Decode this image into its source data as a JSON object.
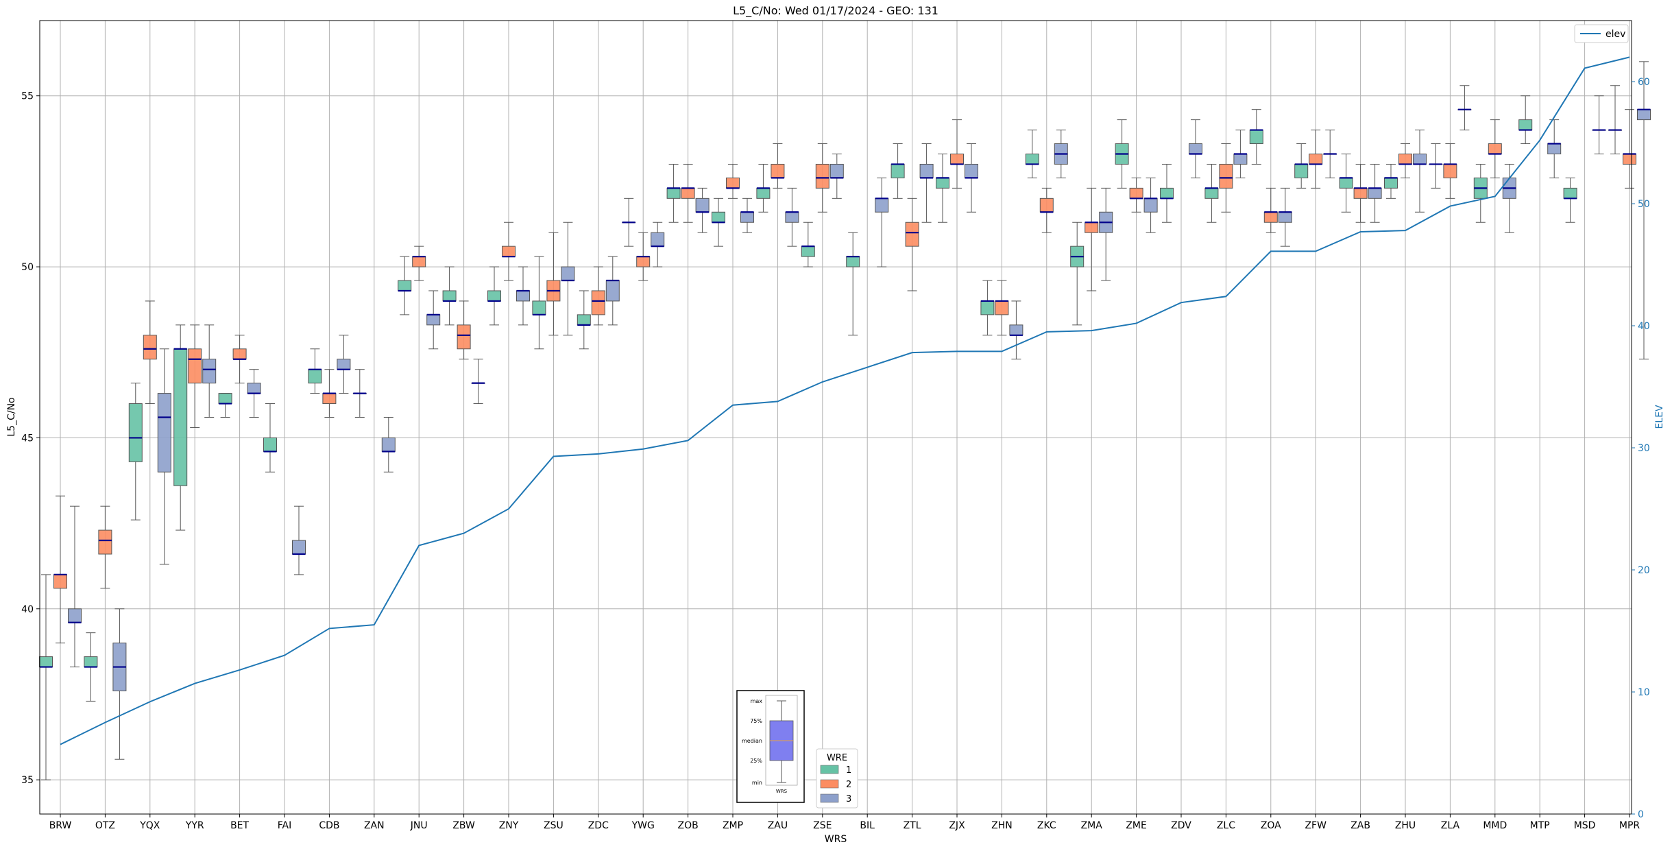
{
  "chart_data": {
    "type": "box",
    "title": "L5_C/No: Wed 01/17/2024 - GEO: 131",
    "xlabel": "WRS",
    "ylabel": "L5_C/No",
    "y2label": "ELEV",
    "ylim": [
      34.0,
      57.2
    ],
    "y2lim": [
      0,
      65
    ],
    "yticks": [
      35,
      40,
      45,
      50,
      55
    ],
    "y2ticks": [
      0,
      10,
      20,
      30,
      40,
      50,
      60
    ],
    "grid": true,
    "categories": [
      "BRW",
      "OTZ",
      "YQX",
      "YYR",
      "BET",
      "FAI",
      "CDB",
      "ZAN",
      "JNU",
      "ZBW",
      "ZNY",
      "ZSU",
      "ZDC",
      "YWG",
      "ZOB",
      "ZMP",
      "ZAU",
      "ZSE",
      "BIL",
      "ZTL",
      "ZJX",
      "ZHN",
      "ZKC",
      "ZMA",
      "ZME",
      "ZDV",
      "ZLC",
      "ZOA",
      "ZFW",
      "ZAB",
      "ZHU",
      "ZLA",
      "MMD",
      "MTP",
      "MSD",
      "MPR"
    ],
    "series": [
      {
        "name": "1",
        "color": "#66c2a5",
        "boxes": [
          {
            "min": 35.0,
            "q1": 38.3,
            "median": 38.3,
            "q3": 38.6,
            "max": 41.0
          },
          {
            "min": 37.3,
            "q1": 38.3,
            "median": 38.3,
            "q3": 38.6,
            "max": 39.3
          },
          {
            "min": 42.6,
            "q1": 44.3,
            "median": 45.0,
            "q3": 46.0,
            "max": 46.6
          },
          {
            "min": 42.3,
            "q1": 43.6,
            "median": 47.6,
            "q3": 47.6,
            "max": 48.3
          },
          {
            "min": 45.6,
            "q1": 46.0,
            "median": 46.0,
            "q3": 46.3,
            "max": 46.3
          },
          {
            "min": 44.0,
            "q1": 44.6,
            "median": 44.6,
            "q3": 45.0,
            "max": 46.0
          },
          {
            "min": 46.3,
            "q1": 46.6,
            "median": 47.0,
            "q3": 47.0,
            "max": 47.6
          },
          {
            "min": 45.6,
            "q1": 46.3,
            "median": 46.3,
            "q3": 46.3,
            "max": 47.0
          },
          {
            "min": 48.6,
            "q1": 49.3,
            "median": 49.3,
            "q3": 49.6,
            "max": 50.3
          },
          {
            "min": 48.3,
            "q1": 49.0,
            "median": 49.0,
            "q3": 49.3,
            "max": 50.0
          },
          {
            "min": 48.3,
            "q1": 49.0,
            "median": 49.0,
            "q3": 49.3,
            "max": 50.0
          },
          {
            "min": 47.6,
            "q1": 48.6,
            "median": 48.6,
            "q3": 49.0,
            "max": 50.3
          },
          {
            "min": 47.6,
            "q1": 48.3,
            "median": 48.3,
            "q3": 48.6,
            "max": 49.3
          },
          {
            "min": 50.6,
            "q1": 51.3,
            "median": 51.3,
            "q3": 51.3,
            "max": 52.0
          },
          {
            "min": 51.3,
            "q1": 52.0,
            "median": 52.3,
            "q3": 52.3,
            "max": 53.0
          },
          {
            "min": 50.6,
            "q1": 51.3,
            "median": 51.3,
            "q3": 51.6,
            "max": 52.0
          },
          {
            "min": 51.6,
            "q1": 52.0,
            "median": 52.3,
            "q3": 52.3,
            "max": 53.0
          },
          {
            "min": 50.0,
            "q1": 50.3,
            "median": 50.6,
            "q3": 50.6,
            "max": 51.3
          },
          {
            "min": 48.0,
            "q1": 50.0,
            "median": 50.3,
            "q3": 50.3,
            "max": 51.0
          },
          {
            "min": 52.0,
            "q1": 52.6,
            "median": 53.0,
            "q3": 53.0,
            "max": 53.6
          },
          {
            "min": 51.3,
            "q1": 52.3,
            "median": 52.6,
            "q3": 52.6,
            "max": 53.3
          },
          {
            "min": 48.0,
            "q1": 48.6,
            "median": 49.0,
            "q3": 49.0,
            "max": 49.6
          },
          {
            "min": 52.6,
            "q1": 53.0,
            "median": 53.0,
            "q3": 53.3,
            "max": 54.0
          },
          {
            "min": 48.3,
            "q1": 50.0,
            "median": 50.3,
            "q3": 50.6,
            "max": 51.3
          },
          {
            "min": 52.3,
            "q1": 53.0,
            "median": 53.3,
            "q3": 53.6,
            "max": 54.3
          },
          {
            "min": 51.3,
            "q1": 52.0,
            "median": 52.0,
            "q3": 52.3,
            "max": 53.0
          },
          {
            "min": 51.3,
            "q1": 52.0,
            "median": 52.3,
            "q3": 52.3,
            "max": 53.0
          },
          {
            "min": 53.0,
            "q1": 53.6,
            "median": 54.0,
            "q3": 54.0,
            "max": 54.6
          },
          {
            "min": 52.3,
            "q1": 52.6,
            "median": 53.0,
            "q3": 53.0,
            "max": 53.6
          },
          {
            "min": 51.6,
            "q1": 52.3,
            "median": 52.6,
            "q3": 52.6,
            "max": 53.3
          },
          {
            "min": 52.0,
            "q1": 52.3,
            "median": 52.6,
            "q3": 52.6,
            "max": 53.0
          },
          {
            "min": 52.3,
            "q1": 53.0,
            "median": 53.0,
            "q3": 53.0,
            "max": 53.6
          },
          {
            "min": 51.3,
            "q1": 52.0,
            "median": 52.3,
            "q3": 52.6,
            "max": 53.0
          },
          {
            "min": 53.6,
            "q1": 54.0,
            "median": 54.0,
            "q3": 54.3,
            "max": 55.0
          },
          {
            "min": 51.3,
            "q1": 52.0,
            "median": 52.0,
            "q3": 52.3,
            "max": 52.6
          },
          {
            "min": 53.3,
            "q1": 54.0,
            "median": 54.0,
            "q3": 54.0,
            "max": 55.3
          }
        ]
      },
      {
        "name": "2",
        "color": "#fc8d62",
        "boxes": [
          {
            "min": 39.0,
            "q1": 40.6,
            "median": 41.0,
            "q3": 41.0,
            "max": 43.3
          },
          {
            "min": 40.6,
            "q1": 41.6,
            "median": 42.0,
            "q3": 42.3,
            "max": 43.0
          },
          {
            "min": 46.0,
            "q1": 47.3,
            "median": 47.6,
            "q3": 48.0,
            "max": 49.0
          },
          {
            "min": 45.3,
            "q1": 46.6,
            "median": 47.3,
            "q3": 47.6,
            "max": 48.3
          },
          {
            "min": 46.6,
            "q1": 47.3,
            "median": 47.3,
            "q3": 47.6,
            "max": 48.0
          },
          {
            "min": null,
            "q1": null,
            "median": null,
            "q3": null,
            "max": null
          },
          {
            "min": 45.6,
            "q1": 46.0,
            "median": 46.3,
            "q3": 46.3,
            "max": 47.0
          },
          {
            "min": null,
            "q1": null,
            "median": null,
            "q3": null,
            "max": null
          },
          {
            "min": 49.6,
            "q1": 50.0,
            "median": 50.3,
            "q3": 50.3,
            "max": 50.6
          },
          {
            "min": 47.3,
            "q1": 47.6,
            "median": 48.0,
            "q3": 48.3,
            "max": 49.0
          },
          {
            "min": 49.6,
            "q1": 50.3,
            "median": 50.3,
            "q3": 50.6,
            "max": 51.3
          },
          {
            "min": 48.0,
            "q1": 49.0,
            "median": 49.3,
            "q3": 49.6,
            "max": 51.0
          },
          {
            "min": 48.3,
            "q1": 48.6,
            "median": 49.0,
            "q3": 49.3,
            "max": 50.0
          },
          {
            "min": 49.6,
            "q1": 50.0,
            "median": 50.3,
            "q3": 50.3,
            "max": 51.0
          },
          {
            "min": 51.3,
            "q1": 52.0,
            "median": 52.3,
            "q3": 52.3,
            "max": 53.0
          },
          {
            "min": 52.0,
            "q1": 52.3,
            "median": 52.3,
            "q3": 52.6,
            "max": 53.0
          },
          {
            "min": 52.3,
            "q1": 52.6,
            "median": 52.6,
            "q3": 53.0,
            "max": 53.6
          },
          {
            "min": 51.6,
            "q1": 52.3,
            "median": 52.6,
            "q3": 53.0,
            "max": 53.6
          },
          {
            "min": null,
            "q1": null,
            "median": null,
            "q3": null,
            "max": null
          },
          {
            "min": 49.3,
            "q1": 50.6,
            "median": 51.0,
            "q3": 51.3,
            "max": 52.0
          },
          {
            "min": 52.3,
            "q1": 53.0,
            "median": 53.0,
            "q3": 53.3,
            "max": 54.3
          },
          {
            "min": 48.0,
            "q1": 48.6,
            "median": 49.0,
            "q3": 49.0,
            "max": 49.6
          },
          {
            "min": 51.0,
            "q1": 51.6,
            "median": 51.6,
            "q3": 52.0,
            "max": 52.3
          },
          {
            "min": 49.3,
            "q1": 51.0,
            "median": 51.3,
            "q3": 51.3,
            "max": 52.3
          },
          {
            "min": 51.6,
            "q1": 52.0,
            "median": 52.0,
            "q3": 52.3,
            "max": 52.6
          },
          {
            "min": null,
            "q1": null,
            "median": null,
            "q3": null,
            "max": null
          },
          {
            "min": 51.6,
            "q1": 52.3,
            "median": 52.6,
            "q3": 53.0,
            "max": 53.6
          },
          {
            "min": 51.0,
            "q1": 51.3,
            "median": 51.6,
            "q3": 51.6,
            "max": 52.3
          },
          {
            "min": 52.3,
            "q1": 53.0,
            "median": 53.0,
            "q3": 53.3,
            "max": 54.0
          },
          {
            "min": 51.3,
            "q1": 52.0,
            "median": 52.3,
            "q3": 52.3,
            "max": 53.0
          },
          {
            "min": 52.6,
            "q1": 53.0,
            "median": 53.0,
            "q3": 53.3,
            "max": 53.6
          },
          {
            "min": 52.0,
            "q1": 52.6,
            "median": 53.0,
            "q3": 53.0,
            "max": 53.6
          },
          {
            "min": 52.6,
            "q1": 53.3,
            "median": 53.3,
            "q3": 53.6,
            "max": 54.3
          },
          {
            "min": null,
            "q1": null,
            "median": null,
            "q3": null,
            "max": null
          },
          {
            "min": null,
            "q1": null,
            "median": null,
            "q3": null,
            "max": null
          },
          {
            "min": 52.3,
            "q1": 53.0,
            "median": 53.3,
            "q3": 53.3,
            "max": 54.6
          }
        ]
      },
      {
        "name": "3",
        "color": "#8da0cb",
        "boxes": [
          {
            "min": 38.3,
            "q1": 39.6,
            "median": 39.6,
            "q3": 40.0,
            "max": 43.0
          },
          {
            "min": 35.6,
            "q1": 37.6,
            "median": 38.3,
            "q3": 39.0,
            "max": 40.0
          },
          {
            "min": 41.3,
            "q1": 44.0,
            "median": 45.6,
            "q3": 46.3,
            "max": 47.6
          },
          {
            "min": 45.6,
            "q1": 46.6,
            "median": 47.0,
            "q3": 47.3,
            "max": 48.3
          },
          {
            "min": 45.6,
            "q1": 46.3,
            "median": 46.3,
            "q3": 46.6,
            "max": 47.0
          },
          {
            "min": 41.0,
            "q1": 41.6,
            "median": 41.6,
            "q3": 42.0,
            "max": 43.0
          },
          {
            "min": 46.3,
            "q1": 47.0,
            "median": 47.0,
            "q3": 47.3,
            "max": 48.0
          },
          {
            "min": 44.0,
            "q1": 44.6,
            "median": 44.6,
            "q3": 45.0,
            "max": 45.6
          },
          {
            "min": 47.6,
            "q1": 48.3,
            "median": 48.6,
            "q3": 48.6,
            "max": 49.3
          },
          {
            "min": 46.0,
            "q1": 46.6,
            "median": 46.6,
            "q3": 46.6,
            "max": 47.3
          },
          {
            "min": 48.3,
            "q1": 49.0,
            "median": 49.3,
            "q3": 49.3,
            "max": 50.0
          },
          {
            "min": 48.0,
            "q1": 49.6,
            "median": 49.6,
            "q3": 50.0,
            "max": 51.3
          },
          {
            "min": 48.3,
            "q1": 49.0,
            "median": 49.6,
            "q3": 49.6,
            "max": 50.3
          },
          {
            "min": 50.0,
            "q1": 50.6,
            "median": 50.6,
            "q3": 51.0,
            "max": 51.3
          },
          {
            "min": 51.0,
            "q1": 51.6,
            "median": 51.6,
            "q3": 52.0,
            "max": 52.3
          },
          {
            "min": 51.0,
            "q1": 51.3,
            "median": 51.6,
            "q3": 51.6,
            "max": 52.0
          },
          {
            "min": 50.6,
            "q1": 51.3,
            "median": 51.6,
            "q3": 51.6,
            "max": 52.3
          },
          {
            "min": 52.0,
            "q1": 52.6,
            "median": 52.6,
            "q3": 53.0,
            "max": 53.3
          },
          {
            "min": 50.0,
            "q1": 51.6,
            "median": 52.0,
            "q3": 52.0,
            "max": 52.6
          },
          {
            "min": 51.3,
            "q1": 52.6,
            "median": 52.6,
            "q3": 53.0,
            "max": 53.6
          },
          {
            "min": 51.6,
            "q1": 52.6,
            "median": 52.6,
            "q3": 53.0,
            "max": 53.6
          },
          {
            "min": 47.3,
            "q1": 48.0,
            "median": 48.0,
            "q3": 48.3,
            "max": 49.0
          },
          {
            "min": 52.6,
            "q1": 53.0,
            "median": 53.3,
            "q3": 53.6,
            "max": 54.0
          },
          {
            "min": 49.6,
            "q1": 51.0,
            "median": 51.3,
            "q3": 51.6,
            "max": 52.3
          },
          {
            "min": 51.0,
            "q1": 51.6,
            "median": 52.0,
            "q3": 52.0,
            "max": 52.6
          },
          {
            "min": 52.6,
            "q1": 53.3,
            "median": 53.3,
            "q3": 53.6,
            "max": 54.3
          },
          {
            "min": 52.6,
            "q1": 53.0,
            "median": 53.3,
            "q3": 53.3,
            "max": 54.0
          },
          {
            "min": 50.6,
            "q1": 51.3,
            "median": 51.6,
            "q3": 51.6,
            "max": 52.3
          },
          {
            "min": 52.6,
            "q1": 53.3,
            "median": 53.3,
            "q3": 53.3,
            "max": 54.0
          },
          {
            "min": 51.3,
            "q1": 52.0,
            "median": 52.3,
            "q3": 52.3,
            "max": 53.0
          },
          {
            "min": 51.6,
            "q1": 53.0,
            "median": 53.0,
            "q3": 53.3,
            "max": 54.0
          },
          {
            "min": 54.0,
            "q1": 54.6,
            "median": 54.6,
            "q3": 54.6,
            "max": 55.3
          },
          {
            "min": 51.0,
            "q1": 52.0,
            "median": 52.3,
            "q3": 52.6,
            "max": 53.0
          },
          {
            "min": 52.6,
            "q1": 53.3,
            "median": 53.6,
            "q3": 53.6,
            "max": 54.3
          },
          {
            "min": 53.3,
            "q1": 54.0,
            "median": 54.0,
            "q3": 54.0,
            "max": 55.0
          },
          {
            "min": 47.3,
            "q1": 54.3,
            "median": 54.6,
            "q3": 54.6,
            "max": 56.0
          }
        ]
      }
    ],
    "elev_line": {
      "name": "elev",
      "color": "#1f77b4",
      "values": [
        5.7,
        7.5,
        9.2,
        10.7,
        11.8,
        13.0,
        15.2,
        15.5,
        22.0,
        23.0,
        25.0,
        29.3,
        29.5,
        29.9,
        30.6,
        33.5,
        33.8,
        35.4,
        36.6,
        37.8,
        37.9,
        37.9,
        39.5,
        39.6,
        40.2,
        41.9,
        42.4,
        46.1,
        46.1,
        47.7,
        47.8,
        49.8,
        50.6,
        55.2,
        61.1,
        62.0
      ]
    },
    "legend_elev": {
      "label": "elev",
      "position": "top-right"
    },
    "legend_wre": {
      "title": "WRE",
      "entries": [
        "1",
        "2",
        "3"
      ],
      "position": "bottom-center"
    },
    "box_key": {
      "labels": [
        "max",
        "75%",
        "median",
        "25%",
        "min"
      ],
      "caption": "WRS"
    }
  }
}
